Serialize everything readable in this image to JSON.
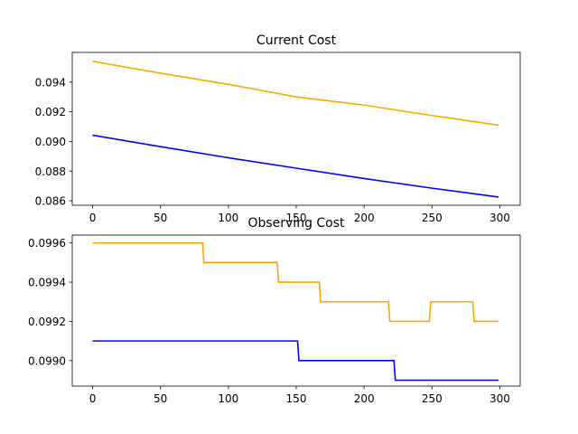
{
  "chart_data": [
    {
      "type": "line",
      "title": "Current Cost",
      "xlabel": "",
      "ylabel": "",
      "xlim": [
        -15,
        315
      ],
      "ylim": [
        0.0857,
        0.096
      ],
      "xticks": [
        0,
        50,
        100,
        150,
        200,
        250,
        300
      ],
      "xtick_labels": [
        "0",
        "50",
        "100",
        "150",
        "200",
        "250",
        "300"
      ],
      "yticks": [
        0.086,
        0.088,
        0.09,
        0.092,
        0.094
      ],
      "ytick_labels": [
        "0.086",
        "0.088",
        "0.090",
        "0.092",
        "0.094"
      ],
      "grid": false,
      "series": [
        {
          "color": "#ffa500",
          "points": [
            [
              0,
              0.0954
            ],
            [
              50,
              0.0946
            ],
            [
              100,
              0.09385
            ],
            [
              150,
              0.093
            ],
            [
              200,
              0.09245
            ],
            [
              250,
              0.09175
            ],
            [
              299,
              0.0911
            ]
          ]
        },
        {
          "color": "#0000ff",
          "points": [
            [
              0,
              0.09042
            ],
            [
              50,
              0.08965
            ],
            [
              100,
              0.0889
            ],
            [
              150,
              0.0882
            ],
            [
              200,
              0.0875
            ],
            [
              250,
              0.08685
            ],
            [
              299,
              0.08625
            ]
          ]
        }
      ]
    },
    {
      "type": "line",
      "title": "Observing Cost",
      "xlabel": "",
      "ylabel": "",
      "xlim": [
        -15,
        315
      ],
      "ylim": [
        0.09887,
        0.09964
      ],
      "xticks": [
        0,
        50,
        100,
        150,
        200,
        250,
        300
      ],
      "xtick_labels": [
        "0",
        "50",
        "100",
        "150",
        "200",
        "250",
        "300"
      ],
      "yticks": [
        0.099,
        0.0992,
        0.0994,
        0.0996
      ],
      "ytick_labels": [
        "0.0990",
        "0.0992",
        "0.0994",
        "0.0996"
      ],
      "grid": false,
      "series": [
        {
          "color": "#ffa500",
          "points": [
            [
              0,
              0.0996
            ],
            [
              81,
              0.0996
            ],
            [
              82,
              0.0995
            ],
            [
              136,
              0.0995
            ],
            [
              137,
              0.0994
            ],
            [
              167,
              0.0994
            ],
            [
              168,
              0.0993
            ],
            [
              218,
              0.0993
            ],
            [
              219,
              0.0992
            ],
            [
              248,
              0.0992
            ],
            [
              249,
              0.0993
            ],
            [
              280,
              0.0993
            ],
            [
              281,
              0.0992
            ],
            [
              299,
              0.0992
            ]
          ]
        },
        {
          "color": "#0000ff",
          "points": [
            [
              0,
              0.0991
            ],
            [
              151,
              0.0991
            ],
            [
              152,
              0.099
            ],
            [
              222,
              0.099
            ],
            [
              223,
              0.0989
            ],
            [
              299,
              0.0989
            ]
          ]
        }
      ]
    }
  ]
}
